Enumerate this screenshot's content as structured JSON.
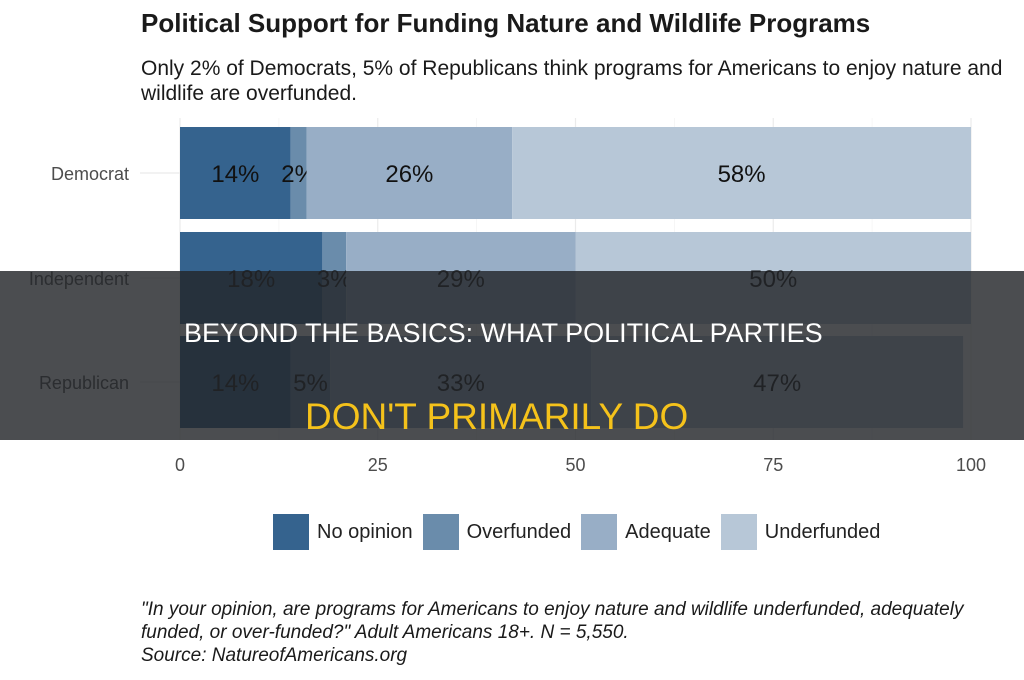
{
  "chart_data": {
    "type": "bar",
    "orientation": "horizontal",
    "stacked": true,
    "title": "Political Support for Funding Nature and Wildlife Programs",
    "subtitle": "Only 2% of Democrats, 5% of Republicans think programs for Americans to enjoy nature and wildlife are overfunded.",
    "categories": [
      "Democrat",
      "Independent",
      "Republican"
    ],
    "series": [
      {
        "name": "No opinion",
        "color": "#35638e",
        "values": [
          14,
          18,
          14
        ]
      },
      {
        "name": "Overfunded",
        "color": "#6a8cab",
        "values": [
          2,
          3,
          5
        ]
      },
      {
        "name": "Adequate",
        "color": "#98aec6",
        "values": [
          26,
          29,
          33
        ]
      },
      {
        "name": "Underfunded",
        "color": "#b7c7d7",
        "values": [
          58,
          50,
          47
        ]
      }
    ],
    "xlim": [
      0,
      100
    ],
    "xticks": [
      "0",
      "25",
      "50",
      "75",
      "100"
    ],
    "grid": true,
    "legend_position": "bottom",
    "caption": "\"In your opinion, are programs for Americans to enjoy nature and wildlife underfunded, adequately funded, or over-funded?\" Adult Americans 18+. N = 5,550.",
    "source": "Source: NatureofAmericans.org"
  },
  "overlay": {
    "line1": "BEYOND THE BASICS: WHAT POLITICAL PARTIES",
    "line2": "DON'T PRIMARILY DO",
    "line2_color": "#f5c21b"
  }
}
